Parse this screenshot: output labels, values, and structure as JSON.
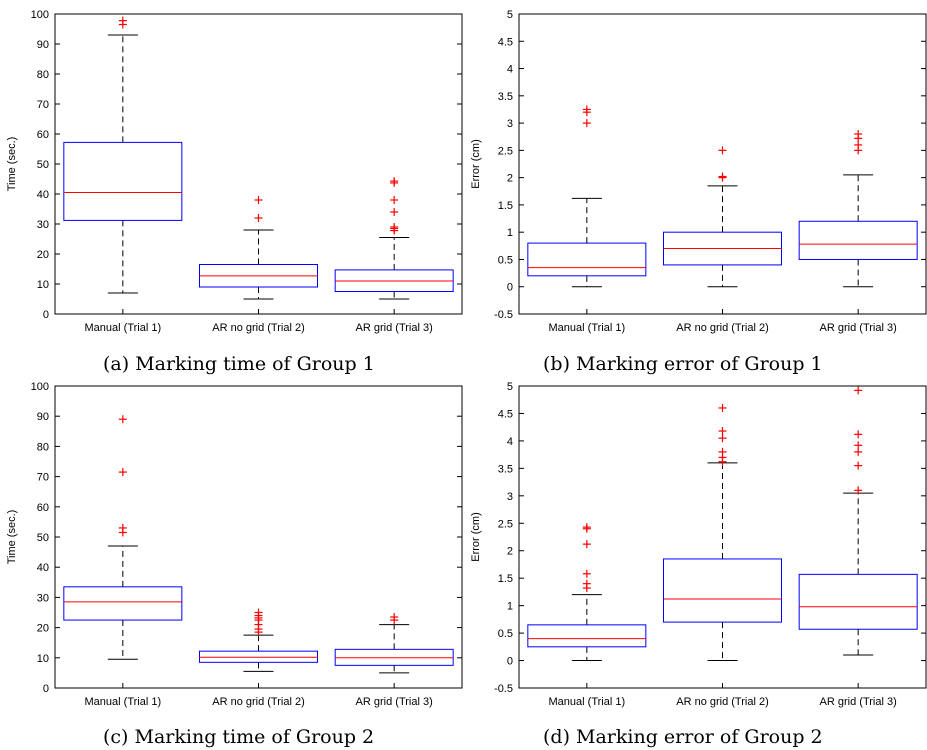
{
  "chart_data": [
    {
      "type": "box",
      "caption": "(a) Marking time of Group 1",
      "ylabel": "Time (sec.)",
      "ylim": [
        0,
        100
      ],
      "yticks": [
        "0",
        "10",
        "20",
        "30",
        "40",
        "50",
        "60",
        "70",
        "80",
        "90",
        "100"
      ],
      "categories": [
        "Manual (Trial 1)",
        "AR no grid (Trial 2)",
        "AR grid (Trial 3)"
      ],
      "boxes": [
        {
          "whisker_low": 7,
          "q1": 31.2,
          "median": 40.5,
          "q3": 57.2,
          "whisker_high": 93,
          "outliers": [
            96.5,
            97.8
          ]
        },
        {
          "whisker_low": 5,
          "q1": 9,
          "median": 12.7,
          "q3": 16.5,
          "whisker_high": 28,
          "outliers": [
            32,
            38
          ]
        },
        {
          "whisker_low": 5,
          "q1": 7.5,
          "median": 11,
          "q3": 14.7,
          "whisker_high": 25.5,
          "outliers": [
            27.8,
            28.5,
            29,
            34,
            38,
            43.7,
            44.3
          ]
        }
      ],
      "colors": {
        "box": "#0000ff",
        "median": "#ff0000",
        "outlier": "#ff0000"
      }
    },
    {
      "type": "box",
      "caption": "(b) Marking error of Group 1",
      "ylabel": "Error (cm)",
      "ylim": [
        -0.5,
        5
      ],
      "yticks": [
        "-0.5",
        "0",
        "0.5",
        "1",
        "1.5",
        "2",
        "2.5",
        "3",
        "3.5",
        "4",
        "4.5",
        "5"
      ],
      "categories": [
        "Manual (Trial 1)",
        "AR no grid (Trial 2)",
        "AR grid (Trial 3)"
      ],
      "boxes": [
        {
          "whisker_low": 0,
          "q1": 0.2,
          "median": 0.35,
          "q3": 0.8,
          "whisker_high": 1.62,
          "outliers": [
            3.0,
            3.2,
            3.25
          ]
        },
        {
          "whisker_low": 0,
          "q1": 0.4,
          "median": 0.7,
          "q3": 1.0,
          "whisker_high": 1.85,
          "outliers": [
            2.0,
            2.02,
            2.5
          ]
        },
        {
          "whisker_low": 0,
          "q1": 0.5,
          "median": 0.78,
          "q3": 1.2,
          "whisker_high": 2.05,
          "outliers": [
            2.5,
            2.6,
            2.72,
            2.8
          ]
        }
      ],
      "colors": {
        "box": "#0000ff",
        "median": "#ff0000",
        "outlier": "#ff0000"
      }
    },
    {
      "type": "box",
      "caption": "(c) Marking time of Group 2",
      "ylabel": "Time (sec.)",
      "ylim": [
        0,
        100
      ],
      "yticks": [
        "0",
        "10",
        "20",
        "30",
        "40",
        "50",
        "60",
        "70",
        "80",
        "90",
        "100"
      ],
      "categories": [
        "Manual (Trial 1)",
        "AR no grid (Trial 2)",
        "AR grid (Trial 3)"
      ],
      "boxes": [
        {
          "whisker_low": 9.5,
          "q1": 22.5,
          "median": 28.5,
          "q3": 33.5,
          "whisker_high": 47,
          "outliers": [
            51.5,
            53,
            71.5,
            89
          ]
        },
        {
          "whisker_low": 5.5,
          "q1": 8.5,
          "median": 10.2,
          "q3": 12.2,
          "whisker_high": 17.5,
          "outliers": [
            18.5,
            19.5,
            21,
            22.5,
            23.2,
            24,
            25
          ]
        },
        {
          "whisker_low": 5,
          "q1": 7.5,
          "median": 10,
          "q3": 12.8,
          "whisker_high": 21,
          "outliers": [
            22.5,
            23.5
          ]
        }
      ],
      "colors": {
        "box": "#0000ff",
        "median": "#ff0000",
        "outlier": "#ff0000"
      }
    },
    {
      "type": "box",
      "caption": "(d) Marking error of Group 2",
      "ylabel": "Error (cm)",
      "ylim": [
        -0.5,
        5
      ],
      "yticks": [
        "-0.5",
        "0",
        "0.5",
        "1",
        "1.5",
        "2",
        "2.5",
        "3",
        "3.5",
        "4",
        "4.5",
        "5"
      ],
      "categories": [
        "Manual (Trial 1)",
        "AR no grid (Trial 2)",
        "AR grid (Trial 3)"
      ],
      "boxes": [
        {
          "whisker_low": 0,
          "q1": 0.25,
          "median": 0.4,
          "q3": 0.65,
          "whisker_high": 1.2,
          "outliers": [
            1.32,
            1.4,
            1.58,
            2.12,
            2.4,
            2.43
          ]
        },
        {
          "whisker_low": 0,
          "q1": 0.7,
          "median": 1.12,
          "q3": 1.85,
          "whisker_high": 3.6,
          "outliers": [
            3.62,
            3.7,
            3.8,
            4.05,
            4.18,
            4.6
          ]
        },
        {
          "whisker_low": 0.1,
          "q1": 0.57,
          "median": 0.98,
          "q3": 1.57,
          "whisker_high": 3.05,
          "outliers": [
            3.1,
            3.55,
            3.8,
            3.92,
            4.12,
            4.92
          ]
        }
      ],
      "colors": {
        "box": "#0000ff",
        "median": "#ff0000",
        "outlier": "#ff0000"
      }
    }
  ]
}
